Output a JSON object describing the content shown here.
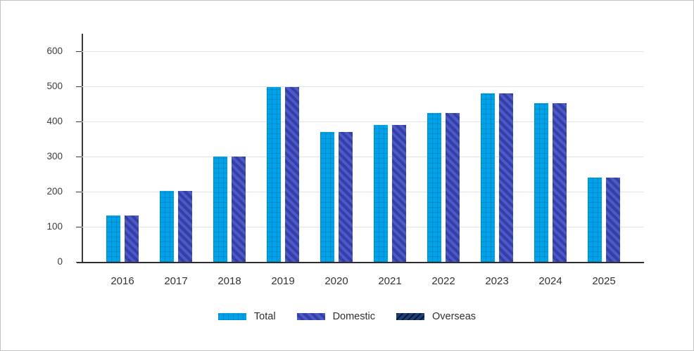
{
  "chart_data": {
    "type": "bar",
    "title": "",
    "xlabel": "",
    "ylabel": "",
    "categories": [
      "2016",
      "2017",
      "2018",
      "2019",
      "2020",
      "2021",
      "2022",
      "2023",
      "2024",
      "2025"
    ],
    "series": [
      {
        "name": "Total",
        "color": "#00a2e8",
        "pattern": "grid",
        "values": [
          133,
          202,
          300,
          498,
          371,
          391,
          424,
          481,
          453,
          241
        ]
      },
      {
        "name": "Domestic",
        "color": "#4d58c9",
        "pattern": "diagonal-down",
        "stripe_color": "#3440a6",
        "values": [
          133,
          202,
          300,
          498,
          371,
          391,
          424,
          481,
          453,
          241
        ]
      },
      {
        "name": "Overseas",
        "color": "#1c4077",
        "pattern": "diagonal-up",
        "stripe_color": "#08162c",
        "values": [
          0,
          0,
          0,
          0,
          0,
          0,
          0,
          0,
          0,
          0
        ]
      }
    ],
    "ylim": [
      0,
      650
    ],
    "yticks": [
      0,
      100,
      200,
      300,
      400,
      500,
      600
    ],
    "grid": true,
    "legend_position": "bottom",
    "gridline_color": "#e2e2e2",
    "axis_color": "#3a3a3a",
    "tick_label_color": "#3d3d3d"
  }
}
